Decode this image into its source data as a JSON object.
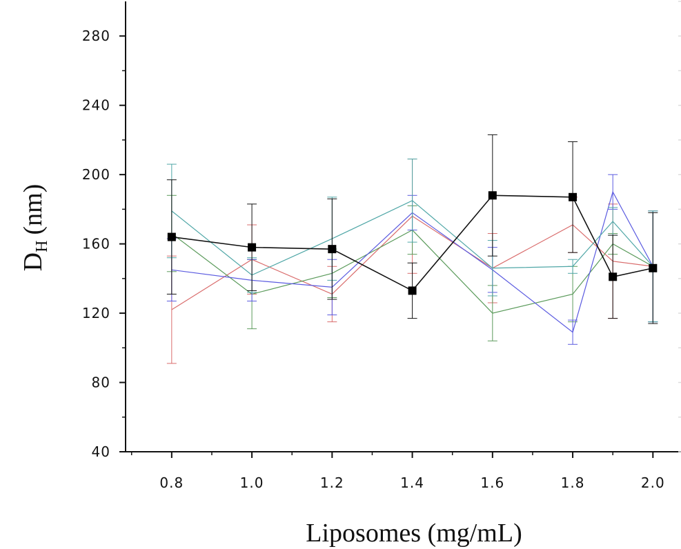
{
  "chart_data": {
    "type": "line",
    "title": "",
    "xlabel": "Liposomes (mg/mL)",
    "ylabel_main": "D",
    "ylabel_sub": "H",
    "ylabel_unit": "(nm)",
    "xlim": [
      0.685,
      2.07
    ],
    "ylim": [
      40,
      300
    ],
    "x_ticks": [
      0.8,
      1.0,
      1.2,
      1.4,
      1.6,
      1.8,
      2.0
    ],
    "x_tick_labels": [
      "0.8",
      "1.0",
      "1.2",
      "1.4",
      "1.6",
      "1.8",
      "2.0"
    ],
    "y_ticks": [
      40,
      80,
      120,
      160,
      200,
      240,
      280
    ],
    "y_tick_labels": [
      "40",
      "80",
      "120",
      "160",
      "200",
      "240",
      "280"
    ],
    "grid": false,
    "legend": "none",
    "x": [
      0.8,
      1.0,
      1.2,
      1.4,
      1.6,
      1.8,
      1.9,
      2.0
    ],
    "series": [
      {
        "color": "#d96b6b",
        "marker": "none",
        "values": [
          122,
          151,
          131,
          176,
          146,
          171,
          150,
          147
        ],
        "err": [
          31,
          20,
          16,
          33,
          20,
          16,
          33,
          32
        ]
      },
      {
        "color": "#5a9a5a",
        "marker": "none",
        "values": [
          166,
          131,
          143,
          168,
          120,
          131,
          160,
          147
        ],
        "err": [
          22,
          20,
          14,
          14,
          16,
          16,
          6,
          32
        ]
      },
      {
        "color": "#5a5ae0",
        "marker": "none",
        "values": [
          145,
          139,
          135,
          178,
          145,
          109,
          190,
          147
        ],
        "err": [
          18,
          12,
          16,
          10,
          13,
          7,
          10,
          32
        ]
      },
      {
        "color": "#4ea6a6",
        "marker": "none",
        "values": [
          179,
          142,
          163,
          185,
          146,
          147,
          173,
          147
        ],
        "err": [
          27,
          10,
          24,
          24,
          16,
          4,
          8,
          32
        ]
      },
      {
        "color": "#111111",
        "marker": "square",
        "values": [
          164,
          158,
          157,
          133,
          188,
          187,
          141,
          146
        ],
        "err": [
          33,
          25,
          29,
          16,
          35,
          32,
          24,
          32
        ]
      }
    ]
  }
}
